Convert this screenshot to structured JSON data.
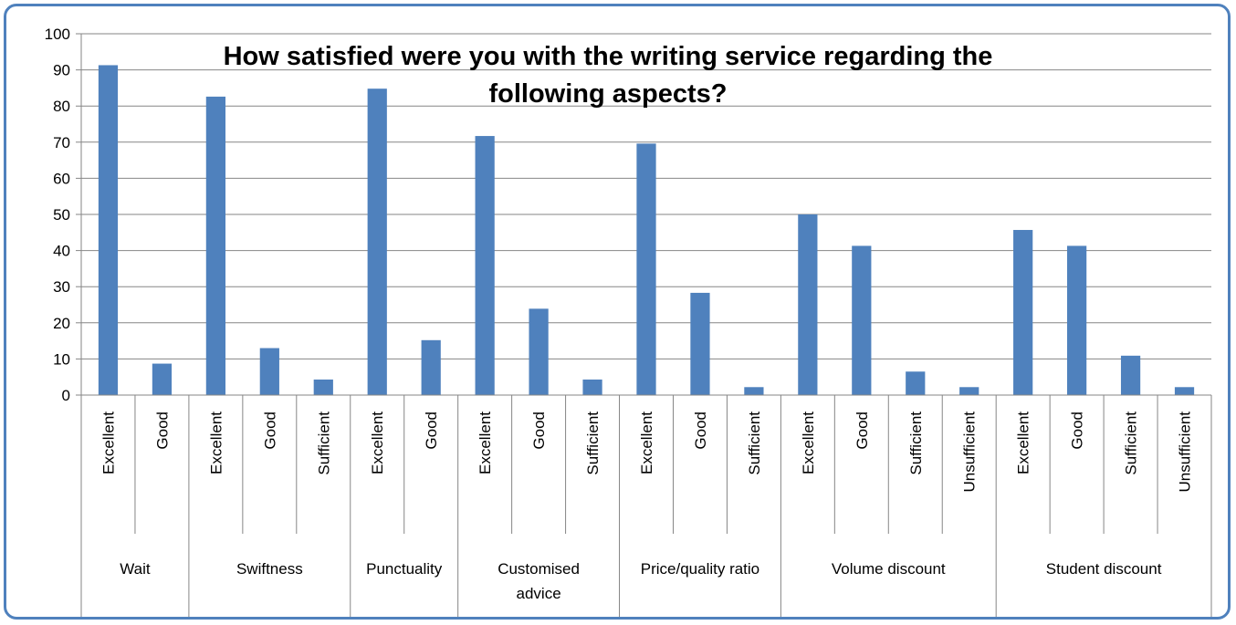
{
  "chart_data": {
    "type": "bar",
    "title_lines": [
      "How satisfied were you with the writing service regarding the",
      "following aspects?"
    ],
    "ylim": [
      0,
      100
    ],
    "yticks": [
      0,
      10,
      20,
      30,
      40,
      50,
      60,
      70,
      80,
      90,
      100
    ],
    "grid": true,
    "legend": "none",
    "bar_color": "#4f81bd",
    "groups": [
      {
        "name": [
          "Wait"
        ],
        "bars": [
          {
            "label": "Excellent",
            "value": 91.3
          },
          {
            "label": "Good",
            "value": 8.7
          }
        ]
      },
      {
        "name": [
          "Swiftness"
        ],
        "bars": [
          {
            "label": "Excellent",
            "value": 82.6
          },
          {
            "label": "Good",
            "value": 13.0
          },
          {
            "label": "Sufficient",
            "value": 4.3
          }
        ]
      },
      {
        "name": [
          "Punctuality"
        ],
        "bars": [
          {
            "label": "Excellent",
            "value": 84.8
          },
          {
            "label": "Good",
            "value": 15.2
          }
        ]
      },
      {
        "name": [
          "Customised",
          "advice"
        ],
        "bars": [
          {
            "label": "Excellent",
            "value": 71.7
          },
          {
            "label": "Good",
            "value": 23.9
          },
          {
            "label": "Sufficient",
            "value": 4.3
          }
        ]
      },
      {
        "name": [
          "Price/quality ratio"
        ],
        "bars": [
          {
            "label": "Excellent",
            "value": 69.6
          },
          {
            "label": "Good",
            "value": 28.3
          },
          {
            "label": "Sufficient",
            "value": 2.2
          }
        ]
      },
      {
        "name": [
          "Volume discount"
        ],
        "bars": [
          {
            "label": "Excellent",
            "value": 50.0
          },
          {
            "label": "Good",
            "value": 41.3
          },
          {
            "label": "Sufficient",
            "value": 6.5
          },
          {
            "label": "Unsufficient",
            "value": 2.2
          }
        ]
      },
      {
        "name": [
          "Student discount"
        ],
        "bars": [
          {
            "label": "Excellent",
            "value": 45.7
          },
          {
            "label": "Good",
            "value": 41.3
          },
          {
            "label": "Sufficient",
            "value": 10.9
          },
          {
            "label": "Unsufficient",
            "value": 2.2
          }
        ]
      }
    ]
  }
}
